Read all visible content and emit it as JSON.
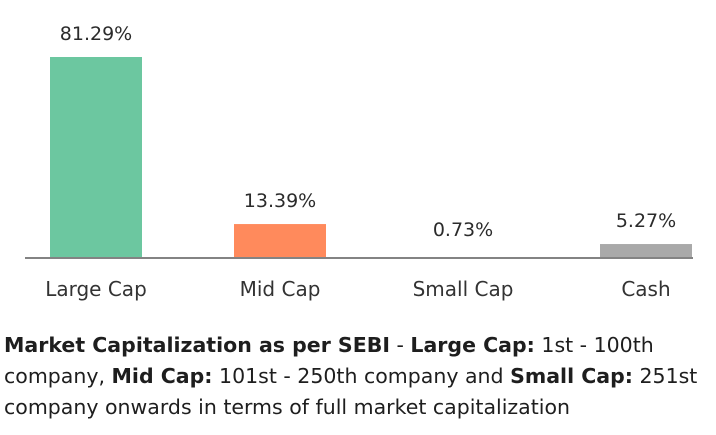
{
  "chart_data": {
    "type": "bar",
    "categories": [
      "Large Cap",
      "Mid Cap",
      "Small Cap",
      "Cash"
    ],
    "values": [
      81.29,
      13.39,
      0.73,
      5.27
    ],
    "value_labels": [
      "81.29%",
      "13.39%",
      "0.73%",
      "5.27%"
    ],
    "colors": [
      "#6cc7a0",
      "#ff8a5c",
      "#c9c9c9",
      "#a9a9a9"
    ],
    "title": "",
    "xlabel": "",
    "ylabel": "",
    "ylim": [
      0,
      81.29
    ],
    "grid": false,
    "legend": "none"
  },
  "note": {
    "heading": "Market Capitalization as per SEBI",
    "sep": " - ",
    "large_label": "Large Cap:",
    "large_text": " 1st - 100th company, ",
    "mid_label": "Mid Cap:",
    "mid_text": " 101st - 250th company and ",
    "small_label": "Small Cap:",
    "small_text": " 251st company onwards in terms of full market capitalization"
  }
}
